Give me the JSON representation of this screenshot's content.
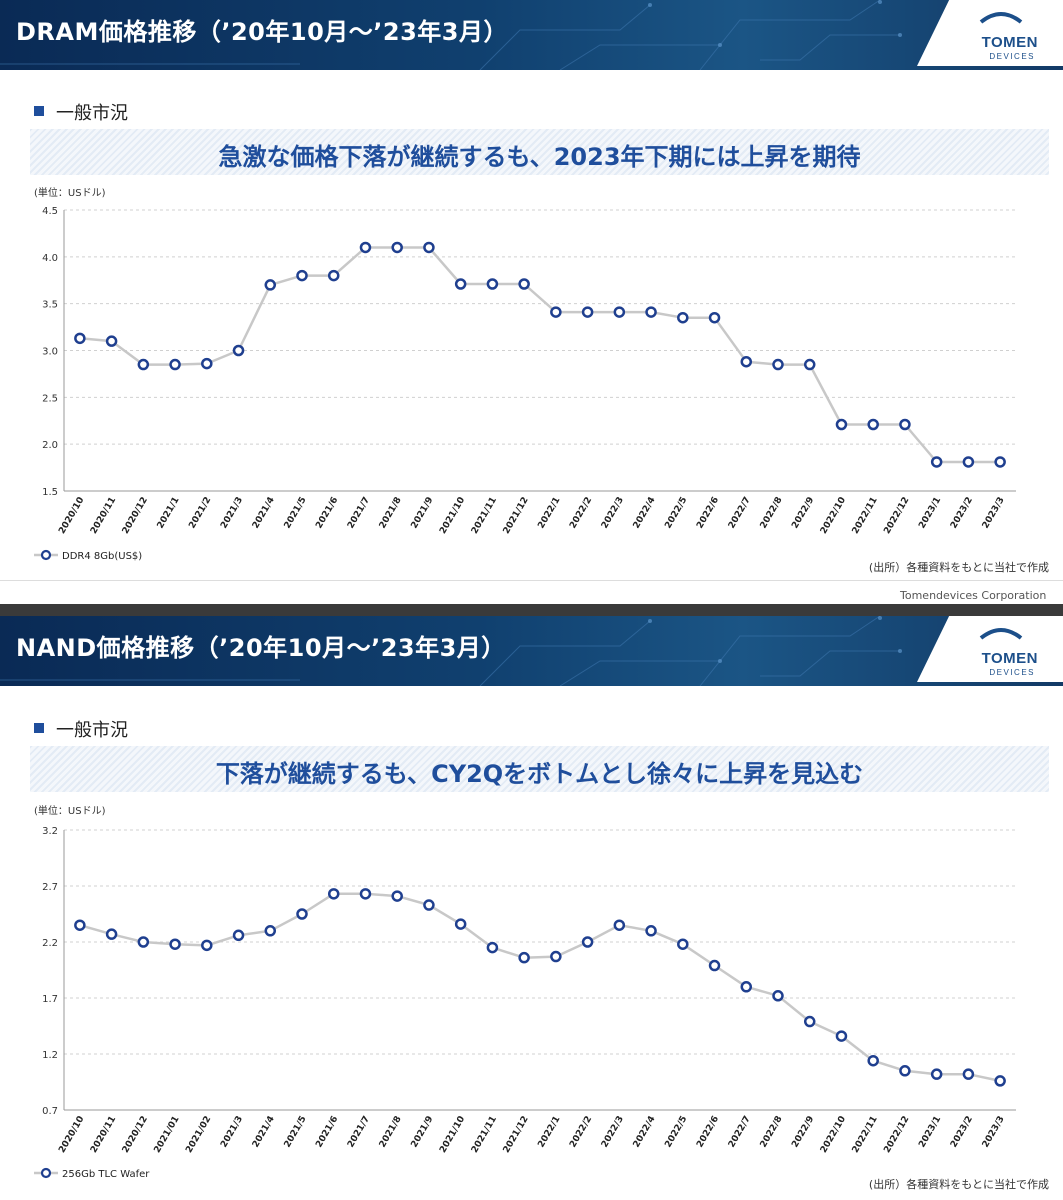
{
  "slides": [
    {
      "title": "DRAM価格推移（’20年10月～’23年3月）",
      "logo": {
        "name": "TOMEN",
        "sub": "DEVICES"
      },
      "section": "一般市況",
      "headline": "急激な価格下落が継続するも、2023年下期には上昇を期待",
      "unit": "(単位：USドル)",
      "source": "(出所）各種資料をもとに当社で作成",
      "footer": "Tomendevices  Corporation"
    },
    {
      "title": "NAND価格推移（’20年10月～’23年3月）",
      "logo": {
        "name": "TOMEN",
        "sub": "DEVICES"
      },
      "section": "一般市況",
      "headline": "下落が継続するも、CY2Qをボトムとし徐々に上昇を見込む",
      "unit": "(単位：USドル)",
      "source": "(出所）各種資料をもとに当社で作成"
    }
  ],
  "colors": {
    "line": "#c8c8c8",
    "marker": "#1f3f8f",
    "accent": "#1f4e9c",
    "grid": "#d0d0d0"
  },
  "chart_data": [
    {
      "type": "line",
      "title": "",
      "xlabel": "",
      "ylabel": "(単位：USドル)",
      "ylim": [
        1.5,
        4.5
      ],
      "yticks": [
        "4.5",
        "4.0",
        "3.5",
        "3.0",
        "2.5",
        "2.0",
        "1.5"
      ],
      "grid": true,
      "legend": "bottom-left",
      "categories": [
        "2020/10",
        "2020/11",
        "2020/12",
        "2021/1",
        "2021/2",
        "2021/3",
        "2021/4",
        "2021/5",
        "2021/6",
        "2021/7",
        "2021/8",
        "2021/9",
        "2021/10",
        "2021/11",
        "2021/12",
        "2022/1",
        "2022/2",
        "2022/3",
        "2022/4",
        "2022/5",
        "2022/6",
        "2022/7",
        "2022/8",
        "2022/9",
        "2022/10",
        "2022/11",
        "2022/12",
        "2023/1",
        "2023/2",
        "2023/3"
      ],
      "series": [
        {
          "name": "DDR4 8Gb(US$)",
          "values": [
            3.13,
            3.1,
            2.85,
            2.85,
            2.86,
            3.0,
            3.7,
            3.8,
            3.8,
            4.1,
            4.1,
            4.1,
            3.71,
            3.71,
            3.71,
            3.41,
            3.41,
            3.41,
            3.41,
            3.35,
            3.35,
            2.88,
            2.85,
            2.85,
            2.21,
            2.21,
            2.21,
            1.81,
            1.81,
            1.81
          ]
        }
      ]
    },
    {
      "type": "line",
      "title": "",
      "xlabel": "",
      "ylabel": "(単位：USドル)",
      "ylim": [
        0.7,
        3.2
      ],
      "yticks": [
        "3.2",
        "2.7",
        "2.2",
        "1.7",
        "1.2",
        "0.7"
      ],
      "grid": true,
      "legend": "bottom-left",
      "categories": [
        "2020/10",
        "2020/11",
        "2020/12",
        "2021/01",
        "2021/02",
        "2021/3",
        "2021/4",
        "2021/5",
        "2021/6",
        "2021/7",
        "2021/8",
        "2021/9",
        "2021/10",
        "2021/11",
        "2021/12",
        "2022/1",
        "2022/2",
        "2022/3",
        "2022/4",
        "2022/5",
        "2022/6",
        "2022/7",
        "2022/8",
        "2022/9",
        "2022/10",
        "2022/11",
        "2022/12",
        "2023/1",
        "2023/2",
        "2023/3"
      ],
      "series": [
        {
          "name": "256Gb TLC Wafer",
          "values": [
            2.35,
            2.27,
            2.2,
            2.18,
            2.17,
            2.26,
            2.3,
            2.45,
            2.63,
            2.63,
            2.61,
            2.53,
            2.36,
            2.15,
            2.06,
            2.07,
            2.2,
            2.35,
            2.3,
            2.18,
            1.99,
            1.8,
            1.72,
            1.49,
            1.36,
            1.14,
            1.05,
            1.02,
            1.02,
            0.96
          ]
        }
      ]
    }
  ]
}
